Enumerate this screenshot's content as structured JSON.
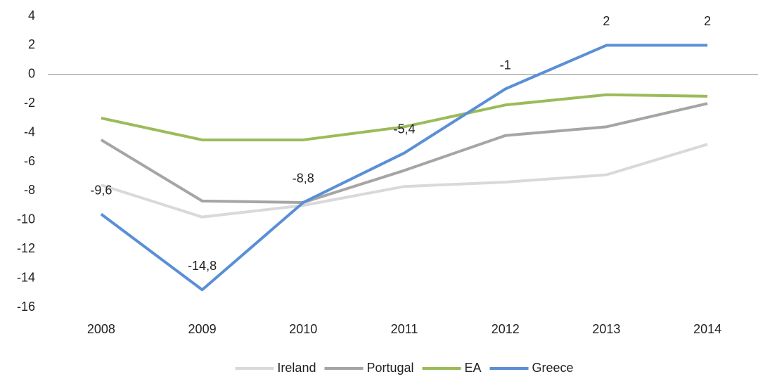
{
  "chart_data": {
    "type": "line",
    "categories": [
      "2008",
      "2009",
      "2010",
      "2011",
      "2012",
      "2013",
      "2014"
    ],
    "series": [
      {
        "name": "Ireland",
        "color": "#d9d9d9",
        "values": [
          -7.6,
          -9.8,
          -9.0,
          -7.7,
          -7.4,
          -6.9,
          -4.8
        ]
      },
      {
        "name": "Portugal",
        "color": "#a5a5a5",
        "values": [
          -4.5,
          -8.7,
          -8.8,
          -6.6,
          -4.2,
          -3.6,
          -2.0
        ]
      },
      {
        "name": "EA",
        "color": "#9bbb59",
        "values": [
          -3.0,
          -4.5,
          -4.5,
          -3.6,
          -2.1,
          -1.4,
          -1.5
        ]
      },
      {
        "name": "Greece",
        "color": "#5a8fd6",
        "values": [
          -9.6,
          -14.8,
          -8.8,
          -5.4,
          -1,
          2,
          2
        ],
        "value_labels": [
          "-9,6",
          "-14,8",
          "-8,8",
          "-5,4",
          "-1",
          "2",
          "2"
        ]
      }
    ],
    "ylim": [
      -16,
      4
    ],
    "yticks": [
      4,
      2,
      0,
      -2,
      -4,
      -6,
      -8,
      -10,
      -12,
      -14,
      -16
    ],
    "grid": false,
    "legend": "bottom"
  }
}
